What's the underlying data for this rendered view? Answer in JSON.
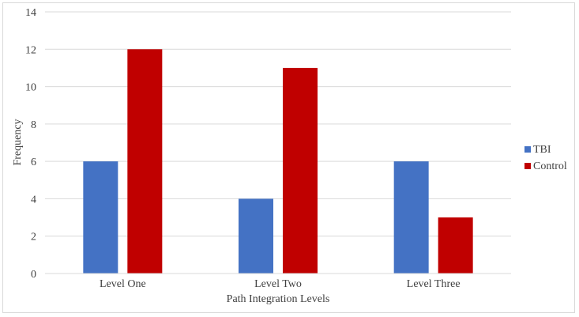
{
  "chart_data": {
    "type": "bar",
    "title": "",
    "xlabel": "Path Integration Levels",
    "ylabel": "Frequency",
    "categories": [
      "Level One",
      "Level Two",
      "Level Three"
    ],
    "series": [
      {
        "name": "TBI",
        "values": [
          6,
          4,
          6
        ],
        "color": "#4472C4"
      },
      {
        "name": "Control",
        "values": [
          12,
          11,
          3
        ],
        "color": "#C00000"
      }
    ],
    "ylim": [
      0,
      14
    ],
    "yticks": [
      0,
      2,
      4,
      6,
      8,
      10,
      12,
      14
    ],
    "grid": true,
    "legend": "right"
  }
}
